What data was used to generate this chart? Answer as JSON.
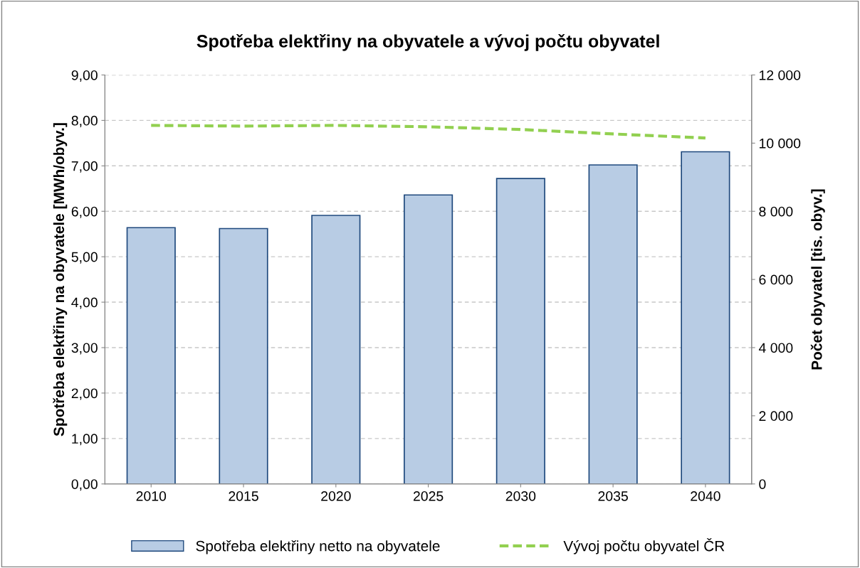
{
  "chart_data": {
    "type": "bar",
    "title": "Spotřeba elektřiny na obyvatele a vývoj počtu obyvatel",
    "ylabel": "Spotřeba elektřiny na obyvatele [MWh/obyv.]",
    "y2label": "Počet obyvatel [tis. obyv.]",
    "categories": [
      "2010",
      "2015",
      "2020",
      "2025",
      "2030",
      "2035",
      "2040"
    ],
    "series": [
      {
        "name": "Spotřeba elektřiny netto na obyvatele",
        "color": "#b8cce4",
        "values": [
          5.64,
          5.62,
          5.91,
          6.36,
          6.72,
          7.02,
          7.31
        ]
      },
      {
        "name": "Vývoj počtu obyvatel ČR",
        "type": "line",
        "axis": "y2",
        "color": "#92d050",
        "line_style": "dashed",
        "values": [
          10520,
          10500,
          10520,
          10480,
          10400,
          10270,
          10150
        ]
      }
    ],
    "ylim": [
      0,
      9
    ],
    "yticks": [
      {
        "value": 0,
        "label": "0,00"
      },
      {
        "value": 1,
        "label": "1,00"
      },
      {
        "value": 2,
        "label": "2,00"
      },
      {
        "value": 3,
        "label": "3,00"
      },
      {
        "value": 4,
        "label": "4,00"
      },
      {
        "value": 5,
        "label": "5,00"
      },
      {
        "value": 6,
        "label": "6,00"
      },
      {
        "value": 7,
        "label": "7,00"
      },
      {
        "value": 8,
        "label": "8,00"
      },
      {
        "value": 9,
        "label": "9,00"
      }
    ],
    "y2lim": [
      0,
      12000
    ],
    "y2ticks": [
      0,
      {
        "value": 2000,
        "label": "2 000"
      },
      {
        "value": 4000,
        "label": "4 000"
      },
      {
        "value": 6000,
        "label": "6 000"
      },
      {
        "value": 8000,
        "label": "8 000"
      },
      {
        "value": 10000,
        "label": "10 000"
      },
      {
        "value": 12000,
        "label": "12 000"
      }
    ],
    "grid": "y",
    "legend": "bottom"
  }
}
